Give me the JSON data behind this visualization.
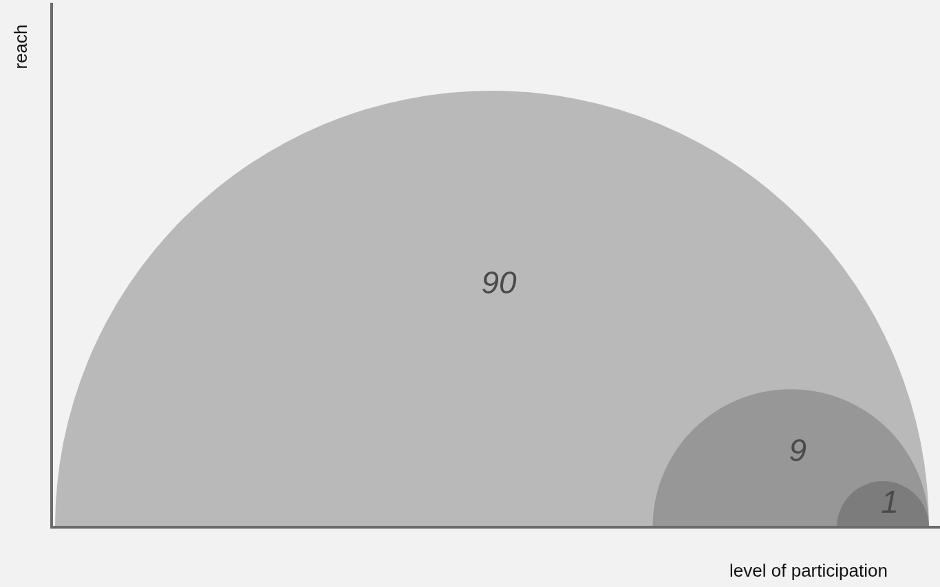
{
  "chart_data": {
    "type": "other",
    "xlabel": "level of participation",
    "ylabel": "reach",
    "categories": [
      null,
      null,
      null
    ],
    "values": [
      90,
      9,
      1
    ],
    "colors": [
      "#b9b9b9",
      "#979797",
      "#7c7c7c"
    ],
    "data_labels": true
  }
}
